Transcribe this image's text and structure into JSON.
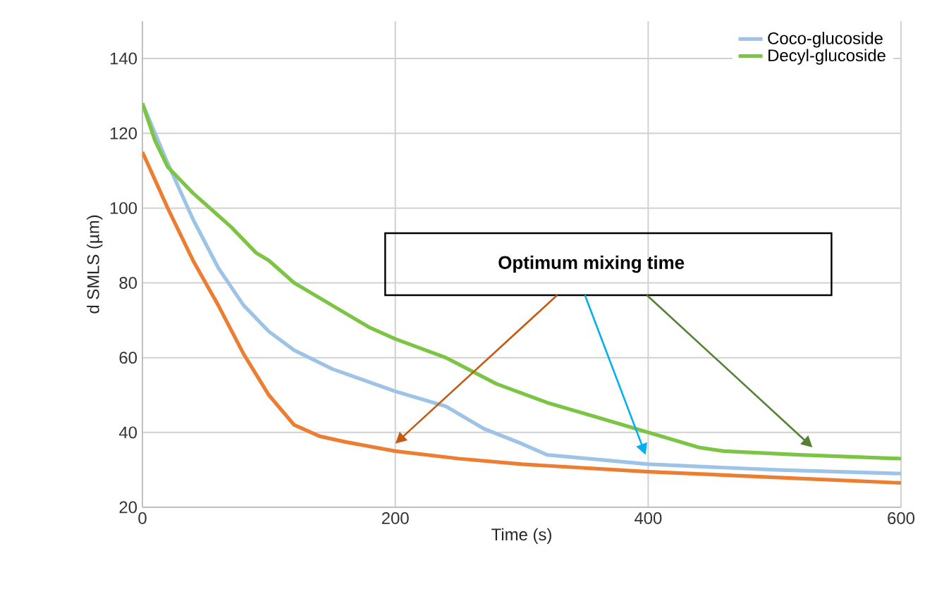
{
  "chart_data": {
    "type": "line",
    "xlabel": "Time (s)",
    "ylabel": "d SMLS (µm)",
    "xlim": [
      0,
      600
    ],
    "xticks": [
      0,
      200,
      400,
      600
    ],
    "ylim": [
      20,
      150
    ],
    "yticks": [
      20,
      40,
      60,
      80,
      100,
      120,
      140
    ],
    "grid": true,
    "legend": "top right",
    "marker": "none",
    "line_style": "solid",
    "annotations": [
      "Optimum mixing time"
    ],
    "series": [
      {
        "color": "#ed7d31",
        "x": [
          0,
          20,
          40,
          60,
          80,
          100,
          120,
          140,
          160,
          200,
          250,
          300,
          400,
          500,
          600
        ],
        "values": [
          115,
          100,
          86,
          74,
          61,
          50,
          42,
          39,
          37.5,
          35,
          33,
          31.5,
          29.5,
          28,
          26.5
        ]
      },
      {
        "name": "Coco-glucoside",
        "color": "#9dc3e6",
        "x": [
          0,
          20,
          40,
          60,
          80,
          100,
          120,
          150,
          200,
          240,
          270,
          300,
          320,
          400,
          500,
          600
        ],
        "values": [
          128,
          112,
          97,
          84,
          74,
          67,
          62,
          57,
          51,
          47,
          41,
          37,
          34,
          31.5,
          30,
          29
        ]
      },
      {
        "name": "Decyl-glucoside",
        "color": "#7cc443",
        "x": [
          0,
          10,
          20,
          40,
          60,
          70,
          90,
          100,
          120,
          150,
          180,
          200,
          240,
          280,
          320,
          360,
          400,
          440,
          460,
          520,
          600
        ],
        "values": [
          128,
          118,
          111,
          104,
          98,
          95,
          88,
          86,
          80,
          74,
          68,
          65,
          60,
          53,
          48,
          44,
          40,
          36,
          35,
          34,
          33
        ]
      }
    ]
  }
}
